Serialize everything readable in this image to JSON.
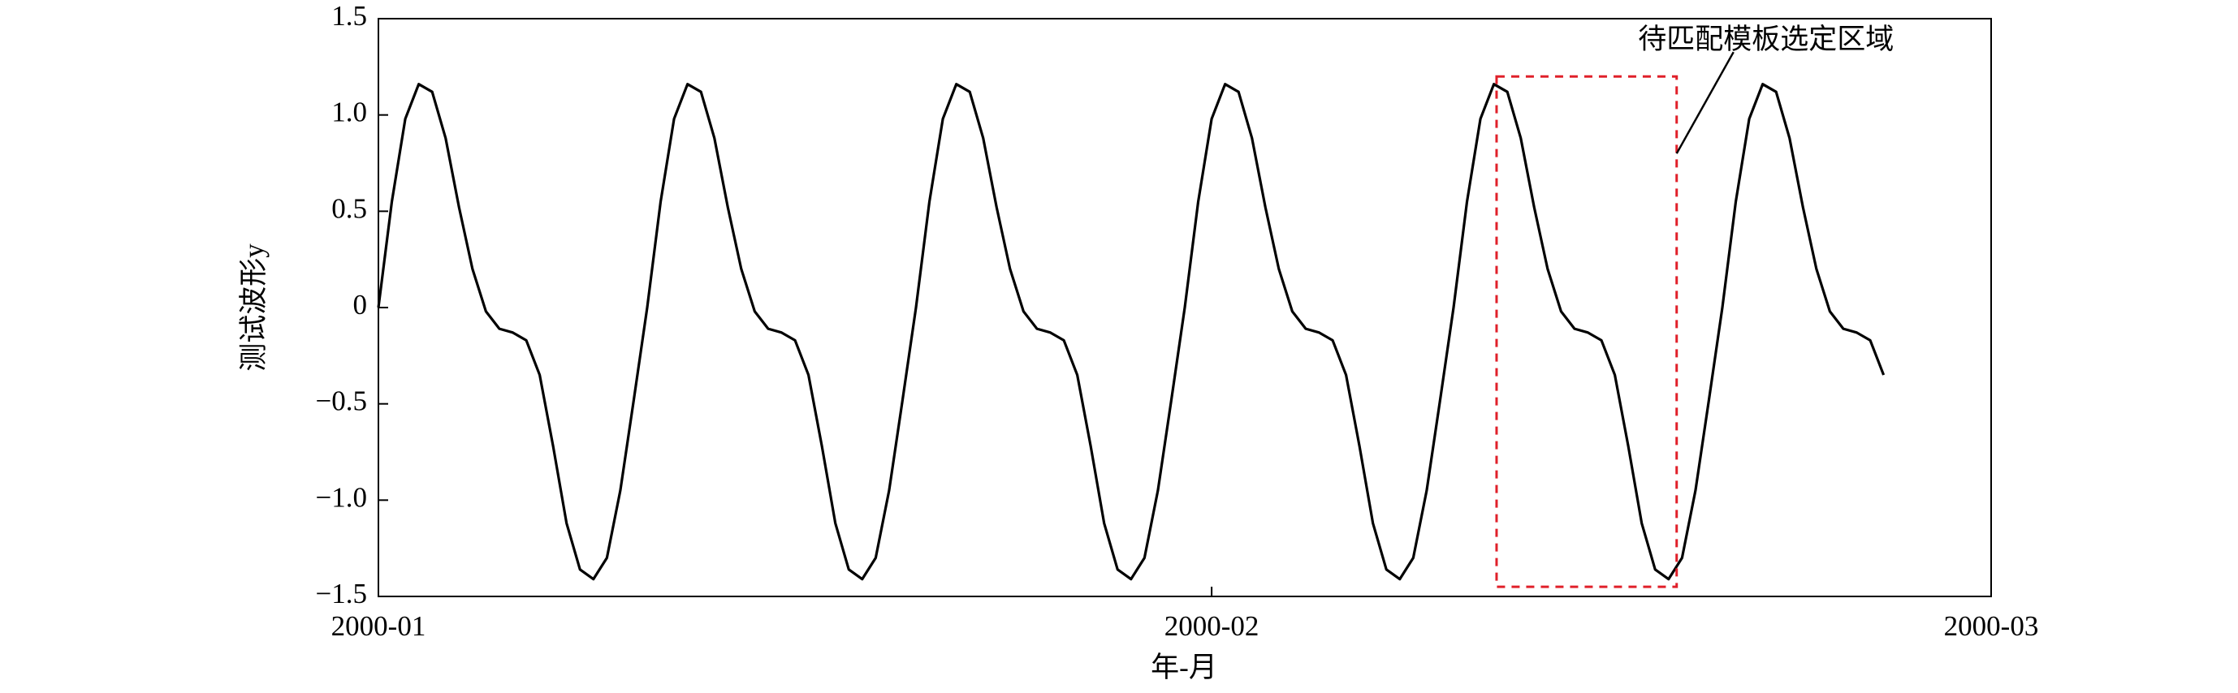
{
  "chart_data": {
    "type": "line",
    "xlabel": "年-月",
    "ylabel": "测试波形y",
    "xlim": [
      0,
      60
    ],
    "xticks": [
      {
        "value": 0,
        "label": "2000-01"
      },
      {
        "value": 31,
        "label": "2000-02"
      },
      {
        "value": 60,
        "label": "2000-03"
      }
    ],
    "ylim": [
      -1.5,
      1.5
    ],
    "yticks": [
      {
        "value": -1.5,
        "label": "−1.5"
      },
      {
        "value": -1,
        "label": "−1.0"
      },
      {
        "value": -0.5,
        "label": "−0.5"
      },
      0,
      0.5,
      {
        "value": 1,
        "label": "1.0"
      },
      1.5
    ],
    "x": [
      0,
      0.5,
      1,
      1.5,
      2,
      2.5,
      3,
      3.5,
      4,
      4.5,
      5,
      5.5,
      6,
      6.5,
      7,
      7.5,
      8,
      8.5,
      9,
      9.5,
      10,
      10.5,
      11,
      11.5,
      12,
      12.5,
      13,
      13.5,
      14,
      14.5,
      15,
      15.5,
      16,
      16.5,
      17,
      17.5,
      18,
      18.5,
      19,
      19.5,
      20,
      20.5,
      21,
      21.5,
      22,
      22.5,
      23,
      23.5,
      24,
      24.5,
      25,
      25.5,
      26,
      26.5,
      27,
      27.5,
      28,
      28.5,
      29,
      29.5,
      30,
      30.5,
      31,
      31.5,
      32,
      32.5,
      33,
      33.5,
      34,
      34.5,
      35,
      35.5,
      36,
      36.5,
      37,
      37.5,
      38,
      38.5,
      39,
      39.5,
      40,
      40.5,
      41,
      41.5,
      42,
      42.5,
      43,
      43.5,
      44,
      44.5,
      45,
      45.5,
      46,
      46.5,
      47,
      47.5,
      48,
      48.5,
      49,
      49.5,
      50,
      50.5,
      51,
      51.5,
      52,
      52.5,
      53,
      53.5,
      54,
      54.5,
      55,
      55.5,
      56
    ],
    "series": [
      {
        "color": "#000000",
        "values": [
          0,
          0.55,
          0.98,
          1.16,
          1.12,
          0.88,
          0.52,
          0.2,
          -0.02,
          -0.11,
          -0.13,
          -0.17,
          -0.35,
          -0.72,
          -1.12,
          -1.36,
          -1.41,
          -1.3,
          -0.95,
          -0.48,
          0,
          0.55,
          0.98,
          1.16,
          1.12,
          0.88,
          0.52,
          0.2,
          -0.02,
          -0.11,
          -0.13,
          -0.17,
          -0.35,
          -0.72,
          -1.12,
          -1.36,
          -1.41,
          -1.3,
          -0.95,
          -0.48,
          0,
          0.55,
          0.98,
          1.16,
          1.12,
          0.88,
          0.52,
          0.2,
          -0.02,
          -0.11,
          -0.13,
          -0.17,
          -0.35,
          -0.72,
          -1.12,
          -1.36,
          -1.41,
          -1.3,
          -0.95,
          -0.48,
          0,
          0.55,
          0.98,
          1.16,
          1.12,
          0.88,
          0.52,
          0.2,
          -0.02,
          -0.11,
          -0.13,
          -0.17,
          -0.35,
          -0.72,
          -1.12,
          -1.36,
          -1.41,
          -1.3,
          -0.95,
          -0.48,
          0,
          0.55,
          0.98,
          1.16,
          1.12,
          0.88,
          0.52,
          0.2,
          -0.02,
          -0.11,
          -0.13,
          -0.17,
          -0.35,
          -0.72,
          -1.12,
          -1.36,
          -1.41,
          -1.3,
          -0.95,
          -0.48,
          0,
          0.55,
          0.98,
          1.16,
          1.12,
          0.88,
          0.52,
          0.2,
          -0.02,
          -0.11,
          -0.13,
          -0.17,
          -0.35
        ]
      }
    ],
    "annotation": {
      "text": "待匹配模板选定区域",
      "color": "#e0202a",
      "x": [
        41.6,
        48.3
      ],
      "y": [
        -1.45,
        1.2
      ]
    }
  }
}
